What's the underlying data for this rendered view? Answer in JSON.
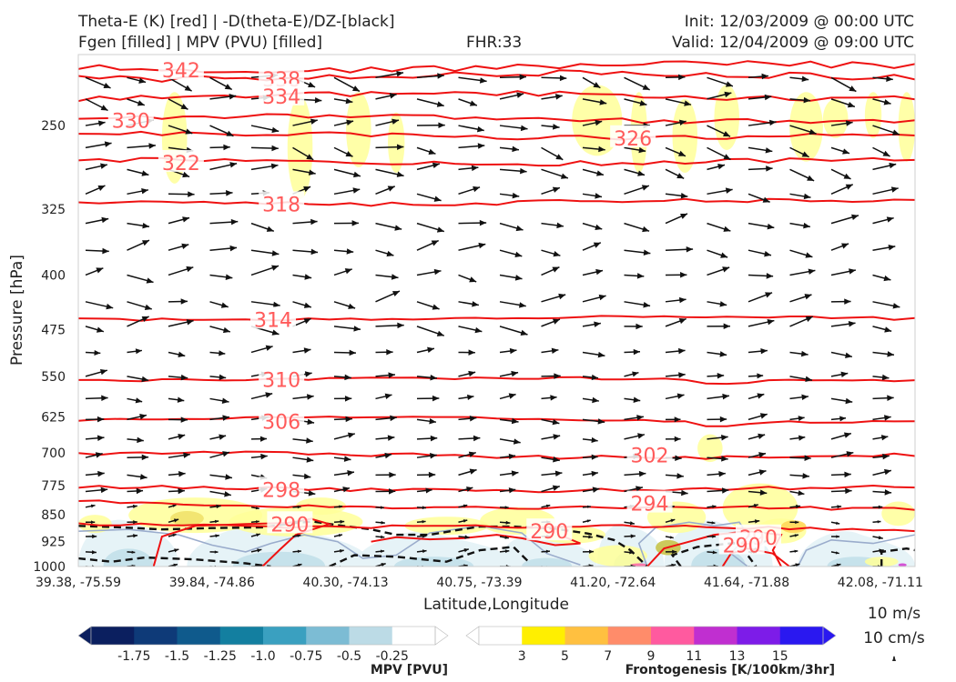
{
  "header": {
    "title_left_1": "Theta-E (K) [red] | -D(theta-E)/DZ-[black]",
    "title_left_2": "Fgen [filled] | MPV (PVU) [filled]",
    "title_center": "FHR:33",
    "title_right_1": "Init: 12/03/2009 @ 00:00 UTC",
    "title_right_2": "Valid: 12/04/2009 @ 09:00 UTC"
  },
  "chart_data": {
    "type": "cross-section",
    "xlabel": "Latitude,Longitude",
    "ylabel": "Pressure [hPa]",
    "ylim": [
      1000,
      200
    ],
    "y_scale": "log-pressure",
    "y_ticks": [
      "250",
      "325",
      "400",
      "475",
      "550",
      "625",
      "700",
      "775",
      "850",
      "925",
      "1000"
    ],
    "x_ticks": [
      "39.38, -75.59",
      "39.84, -74.86",
      "40.30, -74.13",
      "40.75, -73.39",
      "41.20, -72.64",
      "41.64, -71.88",
      "42.08, -71.11"
    ],
    "theta_e_contours": [
      {
        "value": "342",
        "level": 208
      },
      {
        "value": "338",
        "level": 214
      },
      {
        "value": "334",
        "level": 228
      },
      {
        "value": "330",
        "level": 245
      },
      {
        "value": "326",
        "level": 258
      },
      {
        "value": "322",
        "level": 280
      },
      {
        "value": "318",
        "level": 318
      },
      {
        "value": "314",
        "level": 458
      },
      {
        "value": "310",
        "level": 555
      },
      {
        "value": "306",
        "level": 630
      },
      {
        "value": "302",
        "level": 705
      },
      {
        "value": "298",
        "level": 783
      },
      {
        "value": "294",
        "level": 818
      },
      {
        "value": "290",
        "level": 872
      }
    ],
    "theta_e_labels": [
      {
        "text": "342",
        "x": 0.1,
        "level": 210
      },
      {
        "text": "338",
        "x": 0.22,
        "level": 216
      },
      {
        "text": "334",
        "x": 0.22,
        "level": 228
      },
      {
        "text": "330",
        "x": 0.04,
        "level": 246
      },
      {
        "text": "326",
        "x": 0.64,
        "level": 260
      },
      {
        "text": "322",
        "x": 0.1,
        "level": 281
      },
      {
        "text": "318",
        "x": 0.22,
        "level": 320
      },
      {
        "text": "314",
        "x": 0.21,
        "level": 460
      },
      {
        "text": "310",
        "x": 0.22,
        "level": 556
      },
      {
        "text": "306",
        "x": 0.22,
        "level": 634
      },
      {
        "text": "302",
        "x": 0.66,
        "level": 705
      },
      {
        "text": "298",
        "x": 0.22,
        "level": 785
      },
      {
        "text": "294",
        "x": 0.66,
        "level": 820
      },
      {
        "text": "290",
        "x": 0.23,
        "level": 875
      },
      {
        "text": "290",
        "x": 0.54,
        "level": 895
      },
      {
        "text": "290",
        "x": 0.79,
        "level": 912
      },
      {
        "text": "290",
        "x": 0.77,
        "level": 935
      }
    ],
    "mpv_colorbar": {
      "title": "MPV [PVU]",
      "ticks": [
        "-1.75",
        "-1.5",
        "-1.25",
        "-1.0",
        "-0.75",
        "-0.5",
        "-0.25"
      ],
      "colors": [
        "#0b1f5f",
        "#0e3a78",
        "#0f5a8c",
        "#137fa0",
        "#3aa0c0",
        "#7cbcd4",
        "#bcdbe6",
        "#ffffff"
      ]
    },
    "fgen_colorbar": {
      "title": "Frontogenesis [K/100km/3hr]",
      "ticks": [
        "3",
        "5",
        "7",
        "9",
        "11",
        "13",
        "15"
      ],
      "colors": [
        "#ffffff",
        "#ffef00",
        "#ffc040",
        "#ff8c6a",
        "#ff5a9f",
        "#c02fd0",
        "#7d1ce8",
        "#2a18f0"
      ]
    },
    "vector_key": {
      "label_1": "10 m/s",
      "label_2": "10 cm/s"
    },
    "colors": {
      "theta_e": "#ee1111",
      "stability": "#111111",
      "mpv_outline": "#9aaccc"
    }
  }
}
